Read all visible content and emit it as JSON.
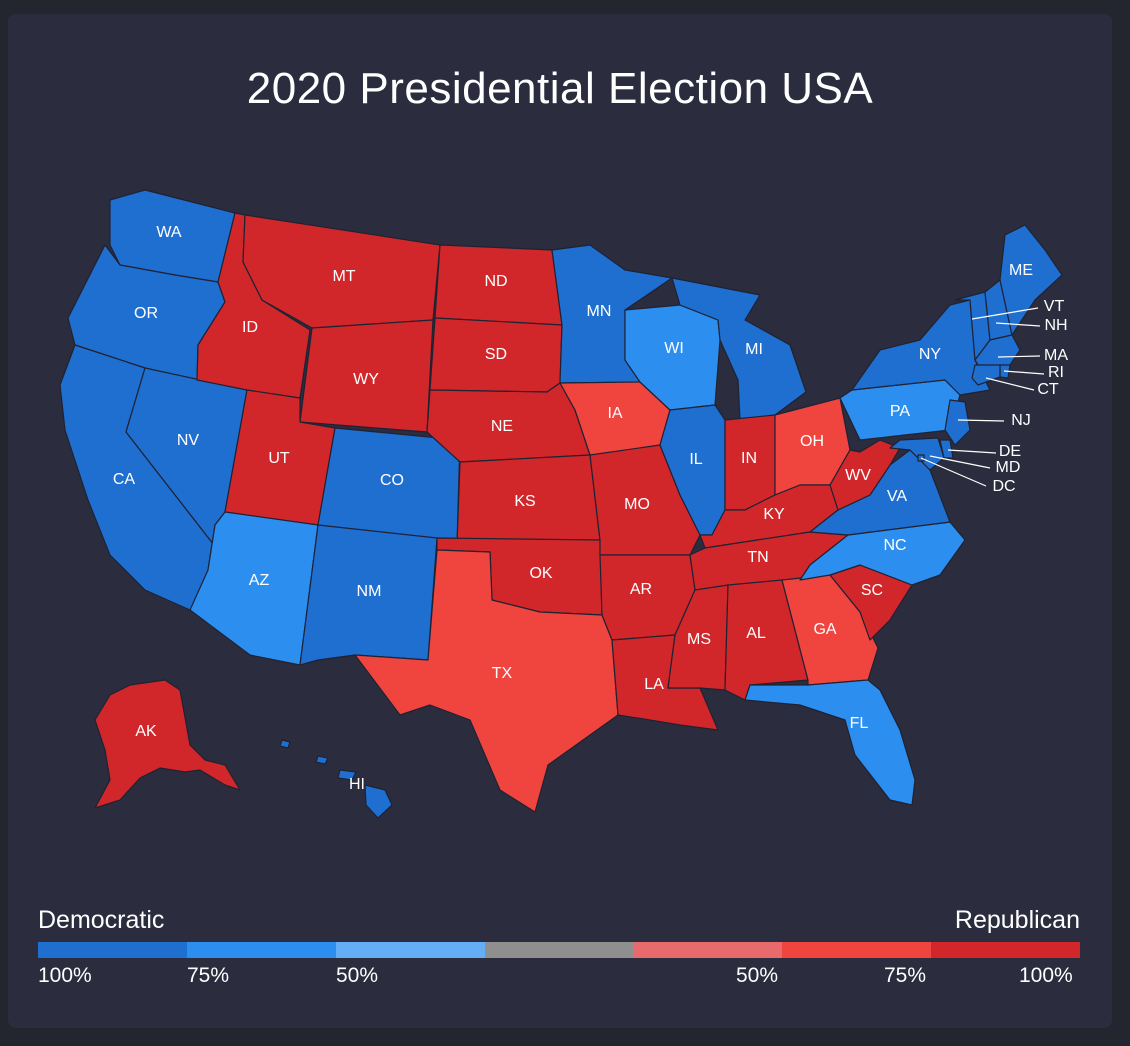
{
  "title": "2020 Presidential Election USA",
  "legend": {
    "left_label": "Democratic",
    "right_label": "Republican",
    "segments": [
      "#1f6fd0",
      "#2c8ff0",
      "#63aef5",
      "#8f8f8f",
      "#e76a6c",
      "#f0443f",
      "#d1272b"
    ],
    "ticks_left": [
      "100%",
      "75%",
      "50%"
    ],
    "ticks_right": [
      "50%",
      "75%",
      "100%"
    ]
  },
  "colors": {
    "dem_strong": "#1f6fd0",
    "dem_lean": "#2c8ff0",
    "rep_lean": "#f0443f",
    "rep_strong": "#d1272b"
  },
  "states": {
    "WA": "dem_strong",
    "OR": "dem_strong",
    "CA": "dem_strong",
    "NV": "dem_strong",
    "ID": "rep_strong",
    "MT": "rep_strong",
    "WY": "rep_strong",
    "UT": "rep_strong",
    "AZ": "dem_lean",
    "CO": "dem_strong",
    "NM": "dem_strong",
    "ND": "rep_strong",
    "SD": "rep_strong",
    "NE": "rep_strong",
    "KS": "rep_strong",
    "OK": "rep_strong",
    "TX": "rep_lean",
    "MN": "dem_strong",
    "IA": "rep_lean",
    "MO": "rep_strong",
    "AR": "rep_strong",
    "LA": "rep_strong",
    "WI": "dem_lean",
    "IL": "dem_strong",
    "MI": "dem_strong",
    "IN": "rep_strong",
    "OH": "rep_lean",
    "KY": "rep_strong",
    "TN": "rep_strong",
    "MS": "rep_strong",
    "AL": "rep_strong",
    "GA": "rep_lean",
    "FL": "dem_lean",
    "SC": "rep_strong",
    "NC": "dem_lean",
    "VA": "dem_strong",
    "WV": "rep_strong",
    "PA": "dem_lean",
    "NY": "dem_strong",
    "VT": "dem_strong",
    "NH": "dem_strong",
    "ME": "dem_strong",
    "MA": "dem_strong",
    "RI": "dem_strong",
    "CT": "dem_strong",
    "NJ": "dem_strong",
    "DE": "dem_strong",
    "MD": "dem_strong",
    "DC": "dem_strong",
    "AK": "rep_strong",
    "HI": "dem_strong"
  },
  "labels": {
    "WA": "WA",
    "OR": "OR",
    "CA": "CA",
    "NV": "NV",
    "ID": "ID",
    "MT": "MT",
    "WY": "WY",
    "UT": "UT",
    "AZ": "AZ",
    "CO": "CO",
    "NM": "NM",
    "ND": "ND",
    "SD": "SD",
    "NE": "NE",
    "KS": "KS",
    "OK": "OK",
    "TX": "TX",
    "MN": "MN",
    "IA": "IA",
    "MO": "MO",
    "AR": "AR",
    "LA": "LA",
    "WI": "WI",
    "IL": "IL",
    "MI": "MI",
    "IN": "IN",
    "OH": "OH",
    "KY": "KY",
    "TN": "TN",
    "MS": "MS",
    "AL": "AL",
    "GA": "GA",
    "FL": "FL",
    "SC": "SC",
    "NC": "NC",
    "VA": "VA",
    "WV": "WV",
    "PA": "PA",
    "NY": "NY",
    "VT": "VT",
    "NH": "NH",
    "ME": "ME",
    "MA": "MA",
    "RI": "RI",
    "CT": "CT",
    "NJ": "NJ",
    "DE": "DE",
    "MD": "MD",
    "DC": "DC",
    "AK": "AK",
    "HI": "HI"
  }
}
